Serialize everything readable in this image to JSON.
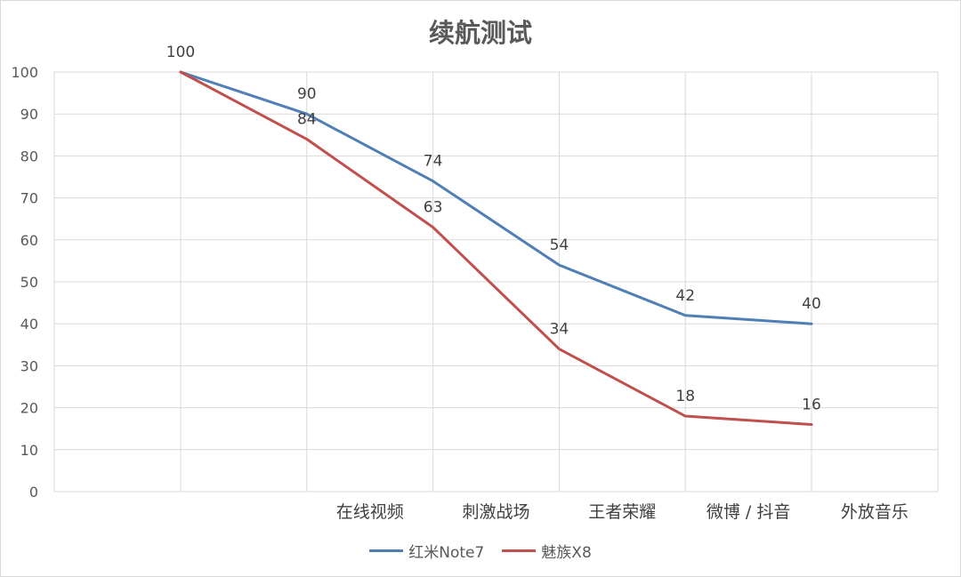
{
  "chart_data": {
    "type": "line",
    "title": "续航测试",
    "categories": [
      "",
      "在线视频",
      "刺激战场",
      "王者荣耀",
      "微博 / 抖音",
      "外放音乐"
    ],
    "series": [
      {
        "name": "红米Note7",
        "color": "#4f7fb4",
        "values": [
          100,
          90,
          74,
          54,
          42,
          40
        ],
        "labels": [
          "100",
          "90",
          "74",
          "54",
          "42",
          "40"
        ]
      },
      {
        "name": "魅族X8",
        "color": "#c0504d",
        "values": [
          100,
          84,
          63,
          34,
          18,
          16
        ],
        "labels": [
          "",
          "84",
          "63",
          "34",
          "18",
          "16"
        ]
      }
    ],
    "ylim": [
      0,
      100
    ],
    "yticks": [
      0,
      10,
      20,
      30,
      40,
      50,
      60,
      70,
      80,
      90,
      100
    ],
    "xlabel": "",
    "ylabel": "",
    "grid": true,
    "legend": "bottom"
  }
}
